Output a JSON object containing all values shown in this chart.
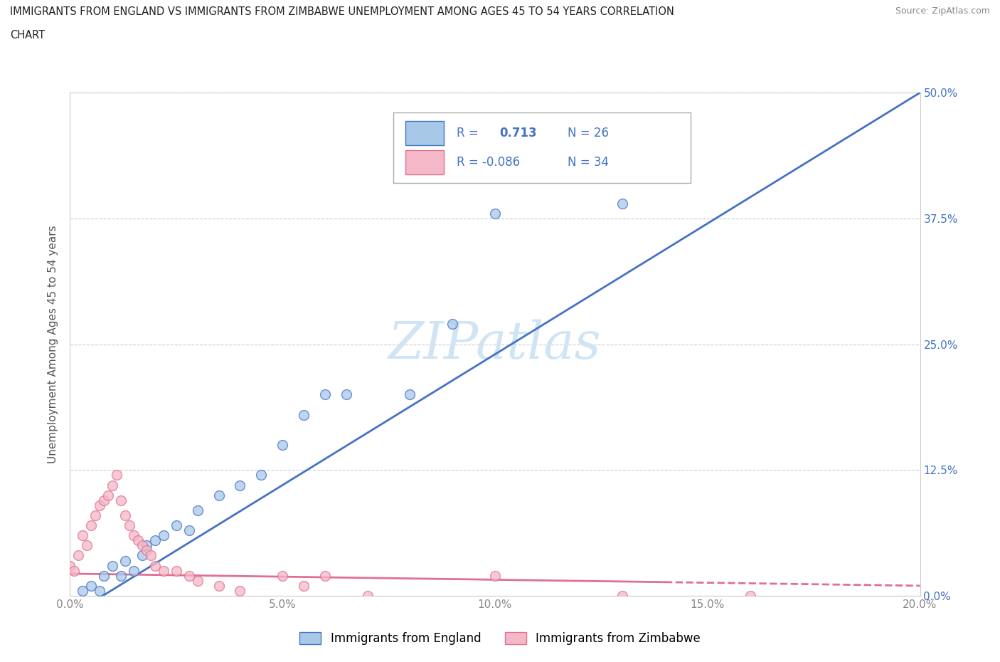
{
  "title": "IMMIGRANTS FROM ENGLAND VS IMMIGRANTS FROM ZIMBABWE UNEMPLOYMENT AMONG AGES 45 TO 54 YEARS CORRELATION\nCHART",
  "source": "Source: ZipAtlas.com",
  "ylabel": "Unemployment Among Ages 45 to 54 years",
  "england_fill_color": "#a8c8e8",
  "england_edge_color": "#4472c4",
  "zimbabwe_fill_color": "#f4b8c8",
  "zimbabwe_edge_color": "#e07090",
  "england_line_color": "#4472c4",
  "zimbabwe_line_color": "#e07090",
  "watermark_color": "#d0e4f4",
  "R_england": 0.713,
  "N_england": 26,
  "R_zimbabwe": -0.086,
  "N_zimbabwe": 34,
  "england_x": [
    0.003,
    0.005,
    0.007,
    0.008,
    0.01,
    0.012,
    0.013,
    0.015,
    0.017,
    0.018,
    0.02,
    0.022,
    0.025,
    0.028,
    0.03,
    0.035,
    0.04,
    0.045,
    0.05,
    0.055,
    0.06,
    0.065,
    0.08,
    0.09,
    0.1,
    0.13
  ],
  "england_y": [
    0.005,
    0.01,
    0.005,
    0.02,
    0.03,
    0.02,
    0.035,
    0.025,
    0.04,
    0.05,
    0.055,
    0.06,
    0.07,
    0.065,
    0.085,
    0.1,
    0.11,
    0.12,
    0.15,
    0.18,
    0.2,
    0.2,
    0.2,
    0.27,
    0.38,
    0.39
  ],
  "zimbabwe_x": [
    0.0,
    0.001,
    0.002,
    0.003,
    0.004,
    0.005,
    0.006,
    0.007,
    0.008,
    0.009,
    0.01,
    0.011,
    0.012,
    0.013,
    0.014,
    0.015,
    0.016,
    0.017,
    0.018,
    0.019,
    0.02,
    0.022,
    0.025,
    0.028,
    0.03,
    0.035,
    0.04,
    0.05,
    0.055,
    0.06,
    0.07,
    0.1,
    0.13,
    0.16
  ],
  "zimbabwe_y": [
    0.03,
    0.025,
    0.04,
    0.06,
    0.05,
    0.07,
    0.08,
    0.09,
    0.095,
    0.1,
    0.11,
    0.12,
    0.095,
    0.08,
    0.07,
    0.06,
    0.055,
    0.05,
    0.045,
    0.04,
    0.03,
    0.025,
    0.025,
    0.02,
    0.015,
    0.01,
    0.005,
    0.02,
    0.01,
    0.02,
    0.0,
    0.02,
    0.0,
    0.0
  ],
  "xlim": [
    0.0,
    0.2
  ],
  "ylim": [
    0.0,
    0.5
  ],
  "xticks": [
    0.0,
    0.05,
    0.1,
    0.15,
    0.2
  ],
  "xticklabels": [
    "0.0%",
    "5.0%",
    "10.0%",
    "15.0%",
    "20.0%"
  ],
  "yticks": [
    0.0,
    0.125,
    0.25,
    0.375,
    0.5
  ],
  "yticklabels": [
    "0.0%",
    "12.5%",
    "25.0%",
    "37.5%",
    "50.0%"
  ],
  "legend_england": "Immigrants from England",
  "legend_zimbabwe": "Immigrants from Zimbabwe",
  "background_color": "#ffffff",
  "grid_color": "#cccccc",
  "tick_color": "#888888",
  "axis_label_color": "#555555",
  "right_tick_color": "#4472c4",
  "title_color": "#222222",
  "source_color": "#888888"
}
